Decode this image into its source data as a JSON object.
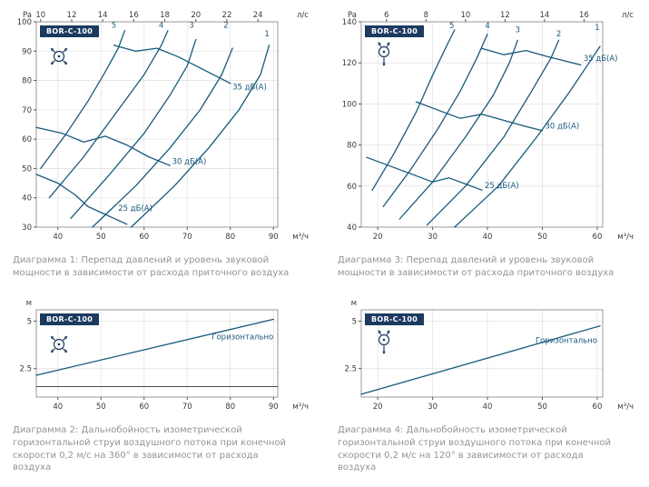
{
  "colors": {
    "curve": "#17597c",
    "model_box_bg": "#1b3a5f",
    "caption_text": "#8f9598"
  },
  "icons": {
    "left_charts": "fan-radial-360-icon",
    "right_charts": "fan-directional-120-icon"
  },
  "chart_data": [
    {
      "type": "line",
      "model": "BOR-C-100",
      "caption": "Диаграмма 1: Перепад давлений и уровень звуковой мощности в зависимости от расхода приточного воздуха",
      "x_axis": {
        "label": "м³/ч",
        "min": 35,
        "max": 91,
        "ticks": [
          40,
          50,
          60,
          70,
          80,
          90
        ]
      },
      "y_axis": {
        "label": "Pa",
        "min": 30,
        "max": 100,
        "ticks": [
          30,
          40,
          50,
          60,
          70,
          80,
          90,
          100
        ]
      },
      "top_axis": {
        "label": "л/с",
        "ticks": [
          10,
          12,
          14,
          16,
          18,
          20,
          22,
          24
        ],
        "m3h_per_ls": 3.6
      },
      "series": [
        {
          "name": "speed-5",
          "points": [
            [
              36,
              50
            ],
            [
              42,
              62
            ],
            [
              47,
              73
            ],
            [
              51,
              83
            ],
            [
              54,
              91
            ],
            [
              55.5,
              97
            ]
          ]
        },
        {
          "name": "speed-4",
          "points": [
            [
              38,
              40
            ],
            [
              46,
              54
            ],
            [
              54,
              70
            ],
            [
              60,
              82
            ],
            [
              64,
              92
            ],
            [
              65.5,
              97
            ]
          ]
        },
        {
          "name": "speed-3",
          "points": [
            [
              43,
              33
            ],
            [
              52,
              48
            ],
            [
              60,
              62
            ],
            [
              66,
              75
            ],
            [
              70,
              85
            ],
            [
              72,
              94
            ]
          ]
        },
        {
          "name": "speed-2",
          "points": [
            [
              48,
              30
            ],
            [
              58,
              44
            ],
            [
              66,
              57
            ],
            [
              73,
              70
            ],
            [
              78,
              82
            ],
            [
              80.5,
              91
            ]
          ]
        },
        {
          "name": "speed-1",
          "points": [
            [
              57,
              30
            ],
            [
              67,
              44
            ],
            [
              75,
              57
            ],
            [
              82,
              70
            ],
            [
              87,
              82
            ],
            [
              89,
              92
            ]
          ]
        },
        {
          "name": "noise-25dBA",
          "points": [
            [
              35,
              48
            ],
            [
              40,
              45
            ],
            [
              44,
              41
            ],
            [
              47,
              37
            ],
            [
              50,
              35
            ],
            [
              53,
              33
            ],
            [
              56,
              31
            ]
          ]
        },
        {
          "name": "noise-30dBA",
          "points": [
            [
              35,
              64
            ],
            [
              41,
              62
            ],
            [
              46,
              59
            ],
            [
              51,
              61
            ],
            [
              56,
              58
            ],
            [
              61,
              54
            ],
            [
              66,
              51
            ]
          ]
        },
        {
          "name": "noise-35dBA",
          "points": [
            [
              53,
              92
            ],
            [
              58,
              90
            ],
            [
              63,
              91
            ],
            [
              68,
              88
            ],
            [
              72,
              85
            ],
            [
              76,
              82
            ],
            [
              80,
              79
            ]
          ]
        }
      ],
      "annotations": [
        {
          "text": "5",
          "x": 53,
          "y": 98
        },
        {
          "text": "4",
          "x": 64,
          "y": 98
        },
        {
          "text": "3",
          "x": 71,
          "y": 98
        },
        {
          "text": "2",
          "x": 79,
          "y": 98
        },
        {
          "text": "1",
          "x": 88.5,
          "y": 95
        },
        {
          "text": "35 дБ(А)",
          "x": 80.5,
          "y": 77,
          "anchor": "start"
        },
        {
          "text": "30 дБ(А)",
          "x": 66.5,
          "y": 51.5,
          "anchor": "start"
        },
        {
          "text": "25 дБ(А)",
          "x": 54,
          "y": 35.5,
          "anchor": "start"
        }
      ]
    },
    {
      "type": "line",
      "model": "BOR-C-100",
      "caption": "Диаграмма 3: Перепад давлений и уровень звуковой мощности в зависимости от расхода приточного воздуха",
      "x_axis": {
        "label": "м³/ч",
        "min": 17,
        "max": 61,
        "ticks": [
          20,
          30,
          40,
          50,
          60
        ]
      },
      "y_axis": {
        "label": "Pa",
        "min": 40,
        "max": 140,
        "ticks": [
          40,
          60,
          80,
          100,
          120,
          140
        ]
      },
      "top_axis": {
        "label": "л/с",
        "ticks": [
          6,
          8,
          10,
          12,
          14,
          16
        ],
        "m3h_per_ls": 3.6
      },
      "series": [
        {
          "name": "speed-5",
          "points": [
            [
              19,
              58
            ],
            [
              23,
              76
            ],
            [
              27,
              96
            ],
            [
              30,
              114
            ],
            [
              32.5,
              128
            ],
            [
              34,
              136
            ]
          ]
        },
        {
          "name": "speed-4",
          "points": [
            [
              21,
              50
            ],
            [
              26,
              68
            ],
            [
              31,
              88
            ],
            [
              35,
              106
            ],
            [
              38,
              122
            ],
            [
              40,
              134
            ]
          ]
        },
        {
          "name": "speed-3",
          "points": [
            [
              24,
              44
            ],
            [
              30,
              62
            ],
            [
              36,
              84
            ],
            [
              41,
              104
            ],
            [
              44,
              120
            ],
            [
              45.5,
              131
            ]
          ]
        },
        {
          "name": "speed-2",
          "points": [
            [
              29,
              41
            ],
            [
              36,
              60
            ],
            [
              43,
              84
            ],
            [
              48,
              106
            ],
            [
              51.5,
              122
            ],
            [
              53,
              131
            ]
          ]
        },
        {
          "name": "speed-1",
          "points": [
            [
              34,
              40
            ],
            [
              42,
              60
            ],
            [
              49,
              84
            ],
            [
              55,
              106
            ],
            [
              59,
              122
            ],
            [
              60.5,
              128
            ]
          ]
        },
        {
          "name": "noise-25dBA",
          "points": [
            [
              18,
              74
            ],
            [
              22,
              70
            ],
            [
              26,
              66
            ],
            [
              30,
              62
            ],
            [
              33,
              64
            ],
            [
              36,
              61
            ],
            [
              39,
              58
            ]
          ]
        },
        {
          "name": "noise-30dBA",
          "points": [
            [
              27,
              101
            ],
            [
              31,
              97
            ],
            [
              35,
              93
            ],
            [
              39,
              95
            ],
            [
              43,
              92
            ],
            [
              47,
              89
            ],
            [
              50,
              87
            ]
          ]
        },
        {
          "name": "noise-35dBA",
          "points": [
            [
              39,
              127
            ],
            [
              43,
              124
            ],
            [
              47,
              126
            ],
            [
              51,
              123
            ],
            [
              54,
              121
            ],
            [
              57,
              119
            ]
          ]
        }
      ],
      "annotations": [
        {
          "text": "5",
          "x": 33.5,
          "y": 137
        },
        {
          "text": "4",
          "x": 40,
          "y": 137
        },
        {
          "text": "3",
          "x": 45.5,
          "y": 135
        },
        {
          "text": "2",
          "x": 53,
          "y": 133
        },
        {
          "text": "1",
          "x": 60,
          "y": 136
        },
        {
          "text": "35 дБ(А)",
          "x": 57.5,
          "y": 121,
          "anchor": "start"
        },
        {
          "text": "30 дБ(А)",
          "x": 50.5,
          "y": 88,
          "anchor": "start"
        },
        {
          "text": "25 дБ(А)",
          "x": 39.5,
          "y": 59,
          "anchor": "start"
        }
      ]
    },
    {
      "type": "line",
      "model": "BOR-C-100",
      "caption": "Диаграмма 2: Дальнобойность изометрической горизонтальной струи воздушного потока при конечной скорости 0,2 м/с на 360° в зависимости от расхода воздуха",
      "x_axis": {
        "label": "м³/ч",
        "min": 35,
        "max": 91,
        "ticks": [
          40,
          50,
          60,
          70,
          80,
          90
        ]
      },
      "y_axis": {
        "label": "м",
        "min": 1,
        "max": 5.6,
        "ticks": [
          2.5,
          5
        ]
      },
      "series": [
        {
          "name": "horizontal-throw",
          "points": [
            [
              35,
              2.15
            ],
            [
              90,
              5.1
            ]
          ]
        },
        {
          "name": "baseline",
          "points": [
            [
              35,
              1.55
            ],
            [
              91,
              1.55
            ]
          ],
          "color": "#45505a",
          "width": 1.1
        }
      ],
      "annotations": [
        {
          "text": "Горизонтально",
          "x": 90,
          "y": 4.05,
          "anchor": "end",
          "color": "#3a4653"
        }
      ]
    },
    {
      "type": "line",
      "model": "BOR-C-100",
      "caption": "Диаграмма 4: Дальнобойность изометрической горизонтальной струи воздушного потока при конечной скорости 0,2 м/с на 120° в зависимости от расхода воздуха",
      "x_axis": {
        "label": "м³/ч",
        "min": 17,
        "max": 61,
        "ticks": [
          20,
          30,
          40,
          50,
          60
        ]
      },
      "y_axis": {
        "label": "м",
        "min": 1,
        "max": 5.6,
        "ticks": [
          2.5,
          5
        ]
      },
      "series": [
        {
          "name": "horizontal-throw",
          "points": [
            [
              17,
              1.15
            ],
            [
              60.5,
              4.75
            ]
          ]
        }
      ],
      "annotations": [
        {
          "text": "Горизонтально",
          "x": 60,
          "y": 3.85,
          "anchor": "end",
          "color": "#3a4653"
        }
      ]
    }
  ]
}
